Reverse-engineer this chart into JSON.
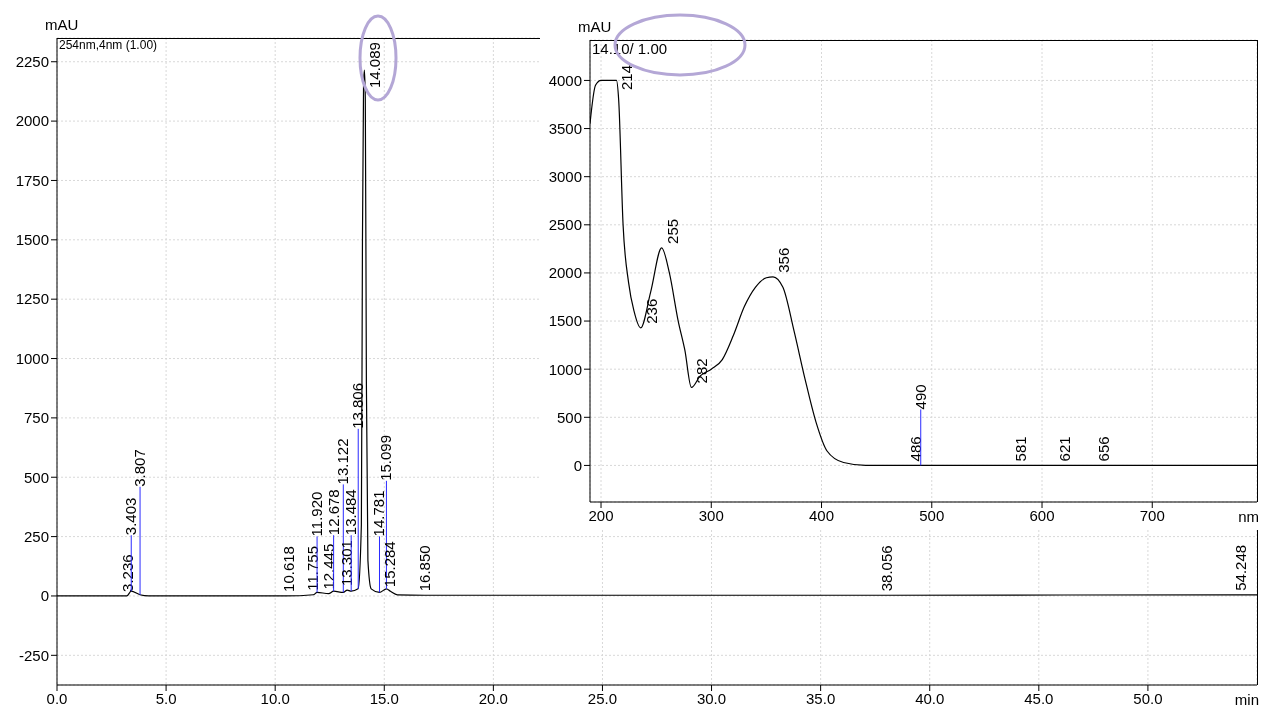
{
  "chart_data": [
    {
      "type": "line",
      "subtitle": "254nm,4nm (1.00)",
      "xlabel": "min",
      "ylabel": "mAU",
      "xlim": [
        0,
        55
      ],
      "ylim": [
        -375,
        2350
      ],
      "xticks": [
        {
          "value": 0,
          "label": "0.0"
        },
        {
          "value": 5,
          "label": "5.0"
        },
        {
          "value": 10,
          "label": "10.0"
        },
        {
          "value": 15,
          "label": "15.0"
        },
        {
          "value": 20,
          "label": "20.0"
        },
        {
          "value": 25,
          "label": "25.0"
        },
        {
          "value": 30,
          "label": "30.0"
        },
        {
          "value": 35,
          "label": "35.0"
        },
        {
          "value": 40,
          "label": "40.0"
        },
        {
          "value": 45,
          "label": "45.0"
        },
        {
          "value": 50,
          "label": "50.0"
        }
      ],
      "yticks": [
        -250,
        0,
        250,
        500,
        750,
        1000,
        1250,
        1500,
        1750,
        2000,
        2250
      ],
      "grid": true,
      "marker": "none",
      "line_style": "solid",
      "series": [
        {
          "color": "#000000",
          "x": [
            0,
            3.2,
            3.4,
            3.8,
            4.2,
            10.5,
            11.75,
            11.92,
            12.45,
            12.68,
            13.12,
            13.3,
            13.48,
            13.8,
            13.95,
            14.0,
            14.05,
            14.089,
            14.13,
            14.18,
            14.25,
            14.4,
            14.78,
            15.1,
            15.28,
            15.6,
            16.85,
            38.06,
            54.25,
            55
          ],
          "values": [
            0,
            0,
            20,
            5,
            0,
            0,
            5,
            15,
            10,
            20,
            15,
            25,
            20,
            30,
            300,
            1500,
            2150,
            2215,
            2100,
            900,
            150,
            30,
            15,
            30,
            20,
            5,
            3,
            3,
            5,
            5
          ]
        }
      ],
      "annotations": [
        {
          "text": "3.236",
          "x": 3.236,
          "y": 0
        },
        {
          "text": "3.403",
          "x": 3.403,
          "y": 20
        },
        {
          "text": "3.807",
          "x": 3.807,
          "y": 5
        },
        {
          "text": "10.618",
          "x": 10.618,
          "y": 0
        },
        {
          "text": "11.755",
          "x": 11.755,
          "y": 5
        },
        {
          "text": "11.920",
          "x": 11.92,
          "y": 15
        },
        {
          "text": "12.445",
          "x": 12.445,
          "y": 10
        },
        {
          "text": "12.678",
          "x": 12.678,
          "y": 20
        },
        {
          "text": "13.122",
          "x": 13.122,
          "y": 15
        },
        {
          "text": "13.301",
          "x": 13.301,
          "y": 25
        },
        {
          "text": "13.484",
          "x": 13.484,
          "y": 20
        },
        {
          "text": "13.806",
          "x": 13.806,
          "y": 30
        },
        {
          "text": "14.089",
          "x": 14.089,
          "y": 2215
        },
        {
          "text": "14.781",
          "x": 14.781,
          "y": 15
        },
        {
          "text": "15.099",
          "x": 15.099,
          "y": 30
        },
        {
          "text": "15.284",
          "x": 15.284,
          "y": 20
        },
        {
          "text": "16.850",
          "x": 16.85,
          "y": 3
        },
        {
          "text": "38.056",
          "x": 38.056,
          "y": 3
        },
        {
          "text": "54.248",
          "x": 54.248,
          "y": 5
        }
      ]
    },
    {
      "type": "line",
      "subtitle": "14.10/ 1.00",
      "xlabel": "nm",
      "ylabel": "mAU",
      "xlim": [
        190,
        795
      ],
      "ylim": [
        -380,
        4420
      ],
      "xticks": [
        200,
        300,
        400,
        500,
        600,
        700
      ],
      "yticks": [
        0,
        500,
        1000,
        1500,
        2000,
        2500,
        3000,
        3500,
        4000
      ],
      "grid": true,
      "marker": "none",
      "line_style": "solid",
      "series": [
        {
          "color": "#000000",
          "x": [
            190,
            195,
            200,
            214,
            216,
            220,
            225,
            230,
            236,
            245,
            255,
            262,
            270,
            276,
            282,
            290,
            300,
            310,
            320,
            330,
            340,
            350,
            356,
            365,
            375,
            385,
            395,
            405,
            420,
            440,
            500,
            795
          ],
          "values": [
            3550,
            3950,
            4000,
            4000,
            3800,
            2500,
            1900,
            1600,
            1430,
            1800,
            2260,
            2000,
            1500,
            1200,
            810,
            930,
            1000,
            1100,
            1350,
            1650,
            1850,
            1950,
            1960,
            1850,
            1400,
            900,
            450,
            150,
            30,
            0,
            0,
            0
          ]
        }
      ],
      "annotations": [
        {
          "text": "214",
          "x": 214,
          "y": 4000
        },
        {
          "text": "236",
          "x": 236,
          "y": 1430
        },
        {
          "text": "255",
          "x": 255,
          "y": 2260
        },
        {
          "text": "282",
          "x": 282,
          "y": 810
        },
        {
          "text": "356",
          "x": 356,
          "y": 1960
        },
        {
          "text": "486",
          "x": 486,
          "y": 0
        },
        {
          "text": "490",
          "x": 490,
          "y": 0
        },
        {
          "text": "581",
          "x": 581,
          "y": 0
        },
        {
          "text": "621",
          "x": 621,
          "y": 0
        },
        {
          "text": "656",
          "x": 656,
          "y": 0
        }
      ]
    }
  ]
}
